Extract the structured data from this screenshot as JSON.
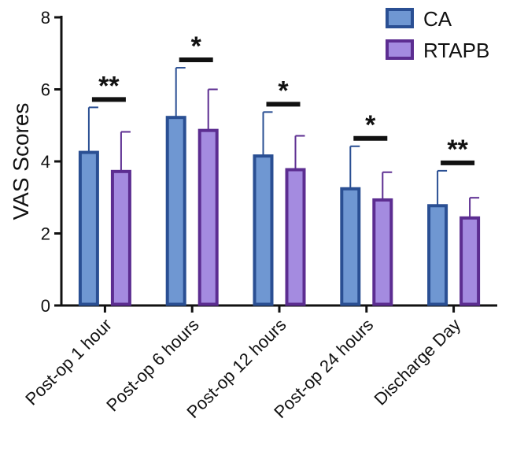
{
  "chart_data": {
    "type": "bar",
    "title": "",
    "xlabel": "",
    "ylabel": "VAS Scores",
    "ylim": [
      0,
      8
    ],
    "yticks": [
      0,
      2,
      4,
      6,
      8
    ],
    "categories": [
      "Post-op 1 hour",
      "Post-op 6 hours",
      "Post-op 12 hours",
      "Post-op 24 hours",
      "Discharge Day"
    ],
    "series": [
      {
        "name": "CA",
        "values": [
          4.25,
          5.22,
          4.15,
          3.24,
          2.77
        ],
        "errors": [
          1.25,
          1.38,
          1.22,
          1.18,
          0.97
        ],
        "fill": "#6f97d2",
        "stroke": "#2a4f93"
      },
      {
        "name": "RTAPB",
        "values": [
          3.72,
          4.86,
          3.77,
          2.93,
          2.43
        ],
        "errors": [
          1.1,
          1.14,
          0.94,
          0.77,
          0.56
        ],
        "fill": "#a48be0",
        "stroke": "#5c2d91"
      }
    ],
    "significance": [
      "**",
      "*",
      "*",
      "*",
      "**"
    ],
    "legend_position": "top-right",
    "grid": false
  }
}
